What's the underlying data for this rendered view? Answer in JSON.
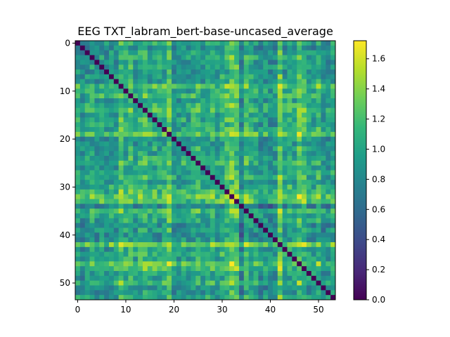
{
  "chart_data": {
    "type": "heatmap",
    "title": "EEG TXT_labram_bert-base-uncased_average",
    "xlabel": "",
    "ylabel": "",
    "rows": 54,
    "cols": 54,
    "x_ticks": [
      0,
      10,
      20,
      30,
      40,
      50
    ],
    "y_ticks": [
      0,
      10,
      20,
      30,
      40,
      50
    ],
    "diagonal_value": 0.0,
    "colorbar": {
      "colormap": "viridis",
      "min": 0.0,
      "max": 1.72,
      "ticks": [
        0.0,
        0.2,
        0.4,
        0.6,
        0.8,
        1.0,
        1.2,
        1.4,
        1.6
      ],
      "tick_labels": [
        "0.0",
        "0.2",
        "0.4",
        "0.6",
        "0.8",
        "1.0",
        "1.2",
        "1.4",
        "1.6"
      ]
    },
    "row_profile": [
      0.98,
      0.72,
      0.9,
      1.05,
      0.85,
      1.0,
      0.78,
      0.95,
      0.88,
      1.42,
      1.12,
      1.25,
      0.92,
      1.18,
      1.3,
      1.02,
      1.1,
      0.97,
      1.08,
      1.5,
      0.86,
      0.8,
      1.0,
      0.82,
      1.05,
      1.2,
      0.88,
      1.0,
      1.12,
      0.9,
      1.15,
      1.3,
      1.55,
      1.45,
      0.55,
      1.28,
      1.05,
      0.98,
      0.72,
      0.85,
      0.62,
      0.75,
      1.62,
      0.9,
      1.1,
      1.0,
      1.5,
      1.3,
      0.95,
      0.88,
      1.22,
      0.7,
      0.8,
      1.05
    ]
  },
  "colors": {
    "viridis_stops": [
      "#440154",
      "#482878",
      "#3e4989",
      "#31688e",
      "#26828e",
      "#1f9e89",
      "#35b779",
      "#6ece58",
      "#b5de2b",
      "#fde725"
    ]
  }
}
